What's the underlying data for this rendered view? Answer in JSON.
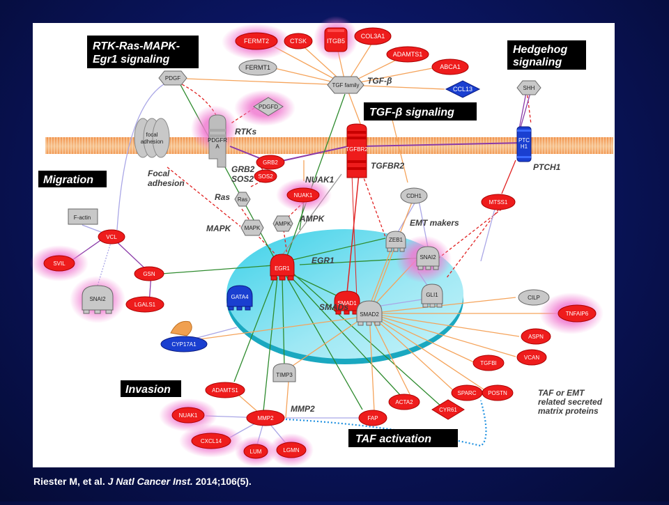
{
  "panel_labels": {
    "rtk": [
      "RTK-Ras-MAPK-",
      "Egr1 signaling"
    ],
    "hedgehog": [
      "Hedgehog",
      "signaling"
    ],
    "tgfb": "TGF-β signaling",
    "migration": "Migration",
    "invasion": "Invasion",
    "taf": "TAF activation"
  },
  "annotations": {
    "tgfb": "TGF-β",
    "rtks": "RTKs",
    "grb2_sos2": [
      "GRB2",
      "SOS2"
    ],
    "focal_adhesion": [
      "Focal",
      "adhesion"
    ],
    "ras": "Ras",
    "mapk": "MAPK",
    "nuak1": "NUAK1",
    "ampk": "AMPK",
    "tgfbr2": "TGFBR2",
    "ptch1": "PTCH1",
    "emt": "EMT makers",
    "egr1": "EGR1",
    "smads": "SMADs",
    "mmp2": "MMP2",
    "taf_emt": [
      "TAF or EMT",
      "related secreted",
      "matrix proteins"
    ]
  },
  "nodes": {
    "fermt2": "FERMT2",
    "ctsk": "CTSK",
    "itgb5": "ITGB5",
    "col3a1": "COL3A1",
    "adamts1_top": "ADAMTS1",
    "abca1": "ABCA1",
    "ccl13": "CCL13",
    "fermt1": "FERMT1",
    "tgf_family": "TGF family",
    "pdgf": "PDGF",
    "pdgfd": "PDGFD",
    "shh": "SHH",
    "focal_adhesion": [
      "focal",
      "adhesion"
    ],
    "pdgfra": [
      "PDGFR",
      "A"
    ],
    "tgfbr2": "TGFBR2",
    "ptch1": [
      "PTC",
      "H1"
    ],
    "grb2": "GRB2",
    "sos2": "SOS2",
    "ras": "Ras",
    "nuak1_mid": "NUAK1",
    "cdh1": "CDH1",
    "mtss1": "MTSS1",
    "ampk": "AMPK",
    "mapk": "MAPK",
    "factin": "F-actin",
    "vcl": "VCL",
    "svil": "SVIL",
    "gsn": "GSN",
    "snai2_left": "SNAI2",
    "lgals1": "LGALS1",
    "egr1": "EGR1",
    "zeb1": "ZEB1",
    "snai2_right": "SNAI2",
    "gli1": "GLI1",
    "gata4": "GATA4",
    "smad1": "SMAD1",
    "smad2": "SMAD2",
    "cilp": "CILP",
    "tnfaip6": "TNFAIP6",
    "cyp17a1": "CYP17A1",
    "aspn": "ASPN",
    "vcan": "VCAN",
    "tgfbi": "TGFBI",
    "timp3": "TIMP3",
    "sparc": "SPARC",
    "postn": "POSTN",
    "adamts1_bot": "ADAMTS1",
    "acta2": "ACTA2",
    "cyr61": "CYR61",
    "nuak1_bot": "NUAK1",
    "mmp2": "MMP2",
    "fap": "FAP",
    "cxcl14": "CXCL14",
    "lum": "LUM",
    "lgmn": "LGMN"
  },
  "citation": {
    "authors": "Riester M, et al.",
    "journal": "J Natl Cancer Inst.",
    "details": "2014;106(5)."
  },
  "colors": {
    "red_node": "#ee1c1c",
    "gray_node": "#c8c8c8",
    "blue_node": "#1a3fd0",
    "glow": "#f08ad0",
    "nucleus": "#7fe0f0",
    "membrane": "#f4b070",
    "edge_orange": "#f5a35a",
    "edge_green": "#2e8b2e",
    "edge_red": "#e02020",
    "edge_purple": "#8a3aa8"
  }
}
